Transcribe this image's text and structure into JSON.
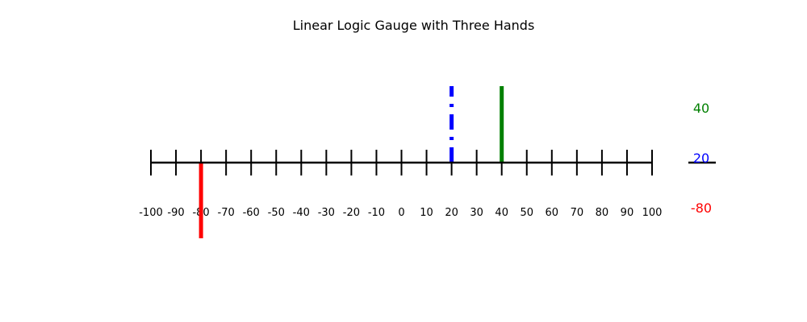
{
  "chart_data": {
    "type": "linear-gauge",
    "title": "Linear Logic Gauge with Three Hands",
    "xlim": [
      -100,
      100
    ],
    "tick_step": 10,
    "ticks": [
      "-100",
      "-90",
      "-80",
      "-70",
      "-60",
      "-50",
      "-40",
      "-30",
      "-20",
      "-10",
      "0",
      "10",
      "20",
      "30",
      "40",
      "50",
      "60",
      "70",
      "80",
      "90",
      "100"
    ],
    "hands": [
      {
        "value": -80,
        "color": "#ff0000",
        "style": "solid",
        "direction": "down"
      },
      {
        "value": 20,
        "color": "#0000ff",
        "style": "dashdot",
        "direction": "up"
      },
      {
        "value": 40,
        "color": "#008000",
        "style": "solid",
        "direction": "up"
      }
    ],
    "readouts": [
      {
        "text": "40",
        "color": "#008000"
      },
      {
        "text": "20",
        "color": "#0000ff"
      },
      {
        "text": "-80",
        "color": "#ff0000"
      }
    ]
  }
}
